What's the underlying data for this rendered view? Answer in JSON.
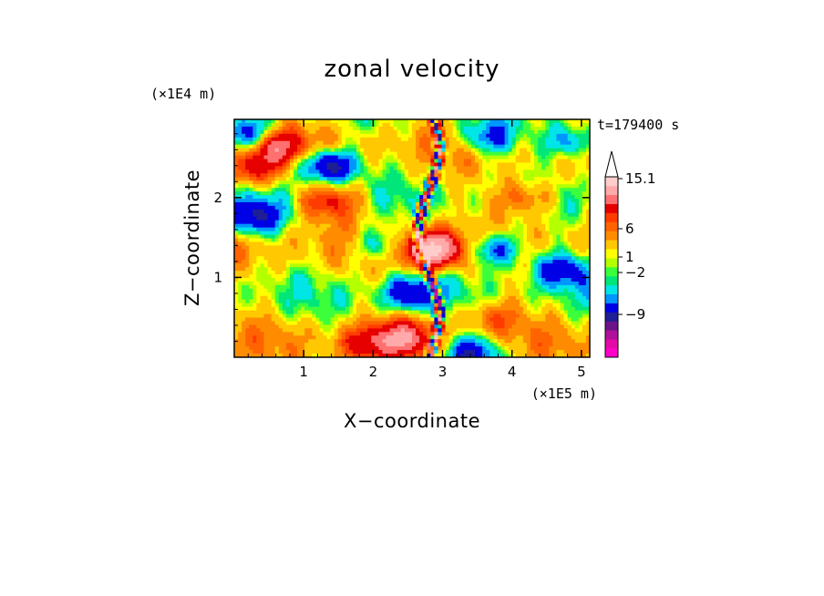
{
  "chart_data": {
    "type": "heatmap",
    "title": "zonal velocity",
    "xlabel": "X−coordinate",
    "ylabel": "Z−coordinate",
    "x_multiplier": "(×1E5 m)",
    "y_multiplier": "(×1E4 m)",
    "time_label": "t=179400 s",
    "xlim": [
      0,
      5.12
    ],
    "ylim": [
      0,
      2.98
    ],
    "x_ticks": [
      1,
      2,
      3,
      4,
      5
    ],
    "x_tick_labels": [
      "1",
      "2",
      "3",
      "4",
      "5"
    ],
    "y_ticks": [
      1,
      2
    ],
    "y_tick_labels": [
      "1",
      "2"
    ],
    "colorbar": {
      "colors": [
        "#ff00c8",
        "#e40aa8",
        "#b0109a",
        "#6a1488",
        "#1e1e96",
        "#0000e6",
        "#0096ff",
        "#00e6e6",
        "#00e678",
        "#3cff3c",
        "#b4ff00",
        "#ffff00",
        "#ffc800",
        "#ff8c00",
        "#ff6400",
        "#ff3c00",
        "#e60000",
        "#ff7070",
        "#ffaaaa",
        "#ffcccc"
      ],
      "tick_labels": [
        "15.1",
        "6",
        "1",
        "−2",
        "−9"
      ]
    },
    "field_regions": [
      {
        "x": 1.35,
        "z": 2.4,
        "value": -8.0
      },
      {
        "x": 0.25,
        "z": 2.75,
        "value": -7.0
      },
      {
        "x": 0.25,
        "z": 1.75,
        "value": -6.0
      },
      {
        "x": 3.75,
        "z": 1.35,
        "value": -6.0
      },
      {
        "x": 4.7,
        "z": 1.1,
        "value": -5.0
      },
      {
        "x": 3.65,
        "z": 2.75,
        "value": -5.0
      },
      {
        "x": 4.85,
        "z": 2.7,
        "value": -5.0
      },
      {
        "x": 2.1,
        "z": 1.4,
        "value": -4.0
      },
      {
        "x": 2.55,
        "z": 0.8,
        "value": -5.0
      },
      {
        "x": 3.4,
        "z": 0.05,
        "value": -6.0
      },
      {
        "x": 0.55,
        "z": 2.65,
        "value": 8.0
      },
      {
        "x": 1.35,
        "z": 1.95,
        "value": 5.0
      },
      {
        "x": 2.85,
        "z": 1.35,
        "value": 12.0
      },
      {
        "x": 2.45,
        "z": 0.25,
        "value": 6.0
      },
      {
        "x": 0.25,
        "z": 2.35,
        "value": 5.0
      },
      {
        "x": 4.2,
        "z": 2.0,
        "value": 4.0
      },
      {
        "x": 3.7,
        "z": 0.5,
        "value": 3.0
      },
      {
        "x": 1.9,
        "z": 0.15,
        "value": 4.0
      }
    ]
  }
}
